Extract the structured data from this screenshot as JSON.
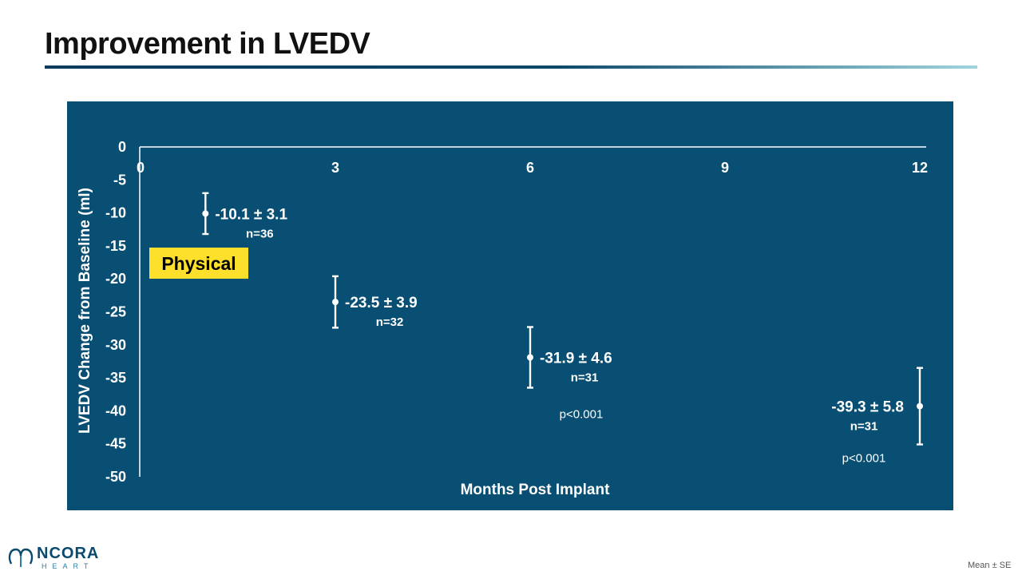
{
  "slide": {
    "title": "Improvement in LVEDV",
    "footnote": "Mean ± SE",
    "logo_word": "NCORA",
    "logo_sub": "HEART"
  },
  "colors": {
    "panel_bg": "#084f73",
    "axis": "#ffffff",
    "tag_bg": "#fde02b",
    "tag_text": "#000000"
  },
  "chart_data": {
    "type": "scatter",
    "xlabel": "Months Post Implant",
    "ylabel": "LVEDV Change from Baseline (ml)",
    "xlim": [
      0,
      12
    ],
    "ylim": [
      -50,
      0
    ],
    "x_ticks": [
      "0",
      "3",
      "6",
      "9",
      "12"
    ],
    "y_ticks": [
      "0",
      "-5",
      "-10",
      "-15",
      "-20",
      "-25",
      "-30",
      "-35",
      "-40",
      "-45",
      "-50"
    ],
    "grid": false,
    "points": [
      {
        "x": 1,
        "y": -10.1,
        "se": 3.1,
        "label": "-10.1 ± 3.1",
        "n": "n=36",
        "p": ""
      },
      {
        "x": 3,
        "y": -23.5,
        "se": 3.9,
        "label": "-23.5 ± 3.9",
        "n": "n=32",
        "p": ""
      },
      {
        "x": 6,
        "y": -31.9,
        "se": 4.6,
        "label": "-31.9 ± 4.6",
        "n": "n=31",
        "p": "p<0.001"
      },
      {
        "x": 12,
        "y": -39.3,
        "se": 5.8,
        "label": "-39.3 ± 5.8",
        "n": "n=31",
        "p": "p<0.001"
      }
    ],
    "annotation": "Physical"
  }
}
